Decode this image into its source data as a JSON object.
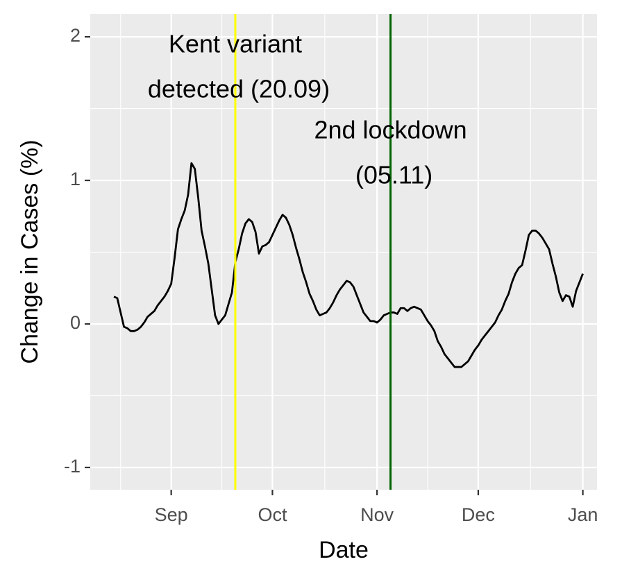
{
  "chart_data": {
    "type": "line",
    "x_label": "Date",
    "y_label": "Change in Cases (%)",
    "color": "#000000",
    "grid": true,
    "categories": [
      null,
      null,
      null,
      null,
      null,
      null,
      null,
      null,
      null,
      null,
      null,
      null,
      null,
      null,
      null,
      null,
      null,
      "Sep",
      null,
      null,
      null,
      null,
      null,
      null,
      null,
      null,
      null,
      null,
      null,
      null,
      null,
      null,
      null,
      null,
      null,
      null,
      null,
      null,
      null,
      null,
      null,
      null,
      null,
      null,
      null,
      null,
      null,
      "Oct",
      null,
      null,
      null,
      null,
      null,
      null,
      null,
      null,
      null,
      null,
      null,
      null,
      null,
      null,
      null,
      null,
      null,
      null,
      null,
      null,
      null,
      null,
      null,
      null,
      null,
      null,
      null,
      null,
      null,
      null,
      "Nov",
      null,
      null,
      null,
      null,
      null,
      null,
      null,
      null,
      null,
      null,
      null,
      null,
      null,
      null,
      null,
      null,
      null,
      null,
      null,
      null,
      null,
      null,
      null,
      null,
      null,
      null,
      null,
      null,
      null,
      "Dec",
      null,
      null,
      null,
      null,
      null,
      null,
      null,
      null,
      null,
      null,
      null,
      null,
      null,
      null,
      null,
      null,
      null,
      null,
      null,
      null,
      null,
      null,
      null,
      null,
      null,
      null,
      null,
      null,
      null,
      null,
      "Jan"
    ],
    "values": [
      0.19,
      0.18,
      0.08,
      -0.02,
      -0.03,
      -0.05,
      -0.05,
      -0.04,
      -0.02,
      0.01,
      0.05,
      0.07,
      0.09,
      0.13,
      0.16,
      0.19,
      0.23,
      0.28,
      0.46,
      0.66,
      0.73,
      0.79,
      0.9,
      1.12,
      1.08,
      0.88,
      0.65,
      0.54,
      0.42,
      0.24,
      0.06,
      0,
      0.03,
      0.06,
      0.14,
      0.22,
      0.43,
      0.52,
      0.63,
      0.7,
      0.73,
      0.71,
      0.64,
      0.49,
      0.54,
      0.55,
      0.57,
      0.62,
      0.67,
      0.72,
      0.76,
      0.74,
      0.69,
      0.62,
      0.53,
      0.45,
      0.36,
      0.29,
      0.21,
      0.16,
      0.1,
      0.06,
      0.07,
      0.08,
      0.11,
      0.15,
      0.2,
      0.24,
      0.27,
      0.3,
      0.29,
      0.26,
      0.2,
      0.14,
      0.08,
      0.05,
      0.02,
      0.02,
      0.01,
      0.03,
      0.06,
      0.07,
      0.08,
      0.08,
      0.07,
      0.11,
      0.11,
      0.09,
      0.11,
      0.12,
      0.11,
      0.1,
      0.06,
      0.02,
      -0.01,
      -0.05,
      -0.12,
      -0.16,
      -0.21,
      -0.24,
      -0.27,
      -0.3,
      -0.3,
      -0.3,
      -0.28,
      -0.26,
      -0.22,
      -0.18,
      -0.15,
      -0.11,
      -0.08,
      -0.05,
      -0.02,
      0.01,
      0.06,
      0.1,
      0.16,
      0.21,
      0.29,
      0.35,
      0.39,
      0.41,
      0.51,
      0.62,
      0.65,
      0.65,
      0.63,
      0.6,
      0.56,
      0.52,
      0.42,
      0.33,
      0.22,
      0.16,
      0.2,
      0.19,
      0.12,
      0.23,
      0.29,
      0.35
    ],
    "ylim": [
      -1.155,
      2.16
    ],
    "yticks": [
      -1,
      0,
      1,
      2
    ],
    "vlines": [
      {
        "position": 36,
        "color": "#ffff00",
        "label": [
          "Kent variant",
          "detected (20.09)"
        ]
      },
      {
        "position": 82,
        "color": "#006400",
        "label": [
          "2nd lockdown",
          "(05.11)"
        ]
      }
    ]
  }
}
